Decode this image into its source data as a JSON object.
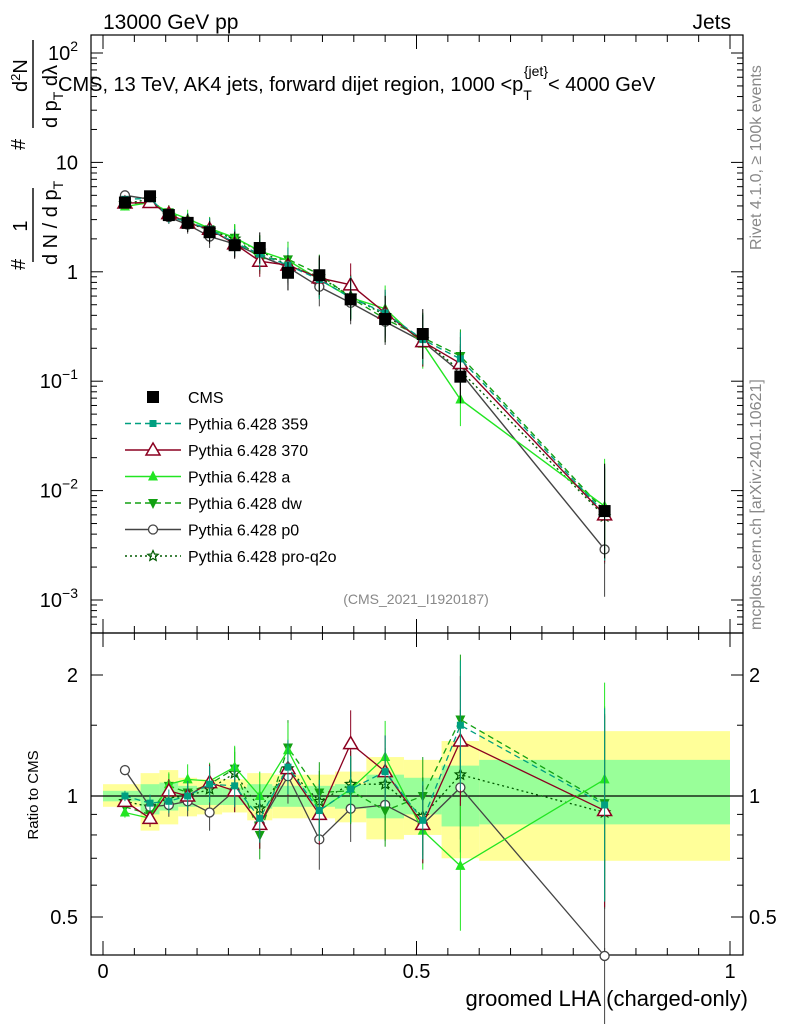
{
  "header": {
    "left": "13000 GeV pp",
    "right": "Jets"
  },
  "side_labels": {
    "rivet": "Rivet 4.1.0, ≥ 100k events",
    "mcplots": "mcplots.cern.ch [arXiv:2401.10621]"
  },
  "colors": {
    "cms": "#000000",
    "p359": "#009f80",
    "p370": "#8b0020",
    "a": "#22e522",
    "dw": "#12a012",
    "p0": "#444444",
    "q2o": "#005a00",
    "band_yellow": "#ffff99",
    "band_green": "#99ff99"
  },
  "chart_data": [
    {
      "type": "line",
      "title": "CMS, 13 TeV, AK4 jets, forward dijet region, 1000 < p_T^{jet} < 4000 GeV",
      "title_parts": {
        "main": "CMS, 13 TeV, AK4 jets, forward dijet region, 1000 <p",
        "sub": "T",
        "sup": "{jet}",
        "tail": "< 4000 GeV"
      },
      "ylabel": "# 1 / d N / d p_T # d^2N / d p_T dλ",
      "ylabel_parts": {
        "l1": "#",
        "frac1_num": "1",
        "frac1_den": "d N / d p",
        "frac1_sub": "T",
        "l2": "#",
        "frac2_num": "d",
        "frac2_num_sup": "2",
        "frac2_num_tail": "N",
        "frac2_den": "d p",
        "frac2_den_sub": "T",
        "frac2_den_tail": " dλ"
      },
      "yscale": "log",
      "ylim": [
        0.0005,
        200
      ],
      "yticks": [
        {
          "v": 0.001,
          "base": "10",
          "exp": "−3"
        },
        {
          "v": 0.01,
          "base": "10",
          "exp": "−2"
        },
        {
          "v": 0.1,
          "base": "10",
          "exp": "−1"
        },
        {
          "v": 1,
          "base": "1",
          "exp": ""
        },
        {
          "v": 10,
          "base": "10",
          "exp": ""
        },
        {
          "v": 100,
          "base": "10",
          "exp": "2"
        }
      ],
      "xlim": [
        0,
        1
      ],
      "x": [
        0.035,
        0.075,
        0.105,
        0.135,
        0.17,
        0.21,
        0.25,
        0.295,
        0.345,
        0.395,
        0.45,
        0.51,
        0.57,
        0.8
      ],
      "watermark": "(CMS_2021_I1920187)",
      "legend_position": "middle-left",
      "series": [
        {
          "name": "CMS",
          "key": "cms",
          "marker": "square",
          "line": "none",
          "values": [
            4.3,
            4.9,
            3.3,
            2.8,
            2.3,
            1.75,
            1.65,
            0.98,
            0.93,
            0.56,
            0.37,
            0.27,
            0.11,
            0.0065
          ]
        },
        {
          "name": "Pythia 6.428 359",
          "key": "p359",
          "marker": "small-square",
          "line": "dashed",
          "values": [
            4.6,
            4.7,
            3.2,
            2.85,
            2.45,
            1.85,
            1.45,
            1.15,
            0.85,
            0.58,
            0.42,
            0.24,
            0.16,
            0.0062
          ]
        },
        {
          "name": "Pythia 6.428 370",
          "key": "p370",
          "marker": "open-triangle",
          "line": "solid",
          "values": [
            4.25,
            4.3,
            3.4,
            2.8,
            2.45,
            1.8,
            1.25,
            1.15,
            0.88,
            0.76,
            0.42,
            0.23,
            0.145,
            0.006
          ]
        },
        {
          "name": "Pythia 6.428 a",
          "key": "a",
          "marker": "triangle",
          "line": "solid",
          "values": [
            3.95,
            4.3,
            3.55,
            3.05,
            2.5,
            2.05,
            1.55,
            1.27,
            0.85,
            0.58,
            0.46,
            0.22,
            0.068,
            0.0072
          ]
        },
        {
          "name": "Pythia 6.428 dw",
          "key": "dw",
          "marker": "down-triangle",
          "line": "dashed",
          "values": [
            4.1,
            4.4,
            3.5,
            2.85,
            2.45,
            2.05,
            1.33,
            1.3,
            0.95,
            0.58,
            0.37,
            0.25,
            0.17,
            0.0065
          ]
        },
        {
          "name": "Pythia 6.428 p0",
          "key": "p0",
          "marker": "open-circle",
          "line": "solid",
          "values": [
            5.0,
            4.6,
            3.15,
            2.7,
            2.1,
            1.8,
            1.4,
            1.1,
            0.73,
            0.52,
            0.35,
            0.23,
            0.12,
            0.0029
          ]
        },
        {
          "name": "Pythia 6.428 pro-q2o",
          "key": "q2o",
          "marker": "star",
          "line": "dotted",
          "values": [
            4.2,
            4.6,
            3.3,
            2.8,
            2.4,
            2.0,
            1.55,
            1.15,
            0.9,
            0.6,
            0.4,
            0.24,
            0.125,
            0.0058
          ]
        }
      ]
    },
    {
      "type": "line",
      "ylabel": "Ratio to CMS",
      "xlabel": "groomed LHA (charged-only)",
      "yscale": "log",
      "ylim": [
        0.42,
        2.45
      ],
      "yticks": [
        {
          "v": 0.5,
          "label": "0.5"
        },
        {
          "v": 1,
          "label": "1"
        },
        {
          "v": 2,
          "label": "2"
        }
      ],
      "xlim": [
        0,
        1
      ],
      "xticks": [
        {
          "v": 0,
          "label": "0"
        },
        {
          "v": 0.5,
          "label": "0.5"
        },
        {
          "v": 1,
          "label": "1"
        }
      ],
      "x": [
        0.035,
        0.075,
        0.105,
        0.135,
        0.17,
        0.21,
        0.25,
        0.295,
        0.345,
        0.395,
        0.45,
        0.51,
        0.57,
        0.8
      ],
      "bin_edges": [
        0,
        0.06,
        0.09,
        0.12,
        0.15,
        0.19,
        0.23,
        0.27,
        0.32,
        0.37,
        0.42,
        0.48,
        0.54,
        0.6,
        1.0
      ],
      "band_yellow": [
        [
          0.94,
          1.07
        ],
        [
          0.82,
          1.14
        ],
        [
          0.85,
          1.16
        ],
        [
          0.89,
          1.11
        ],
        [
          0.9,
          1.1
        ],
        [
          0.91,
          1.1
        ],
        [
          0.87,
          1.14
        ],
        [
          0.88,
          1.13
        ],
        [
          0.88,
          1.13
        ],
        [
          0.86,
          1.15
        ],
        [
          0.78,
          1.25
        ],
        [
          0.8,
          1.23
        ],
        [
          0.7,
          1.37
        ],
        [
          0.69,
          1.45
        ]
      ],
      "band_green": [
        [
          0.97,
          1.03
        ],
        [
          0.9,
          1.07
        ],
        [
          0.92,
          1.08
        ],
        [
          0.94,
          1.06
        ],
        [
          0.95,
          1.05
        ],
        [
          0.95,
          1.05
        ],
        [
          0.93,
          1.07
        ],
        [
          0.94,
          1.06
        ],
        [
          0.94,
          1.06
        ],
        [
          0.93,
          1.07
        ],
        [
          0.88,
          1.13
        ],
        [
          0.9,
          1.11
        ],
        [
          0.84,
          1.19
        ],
        [
          0.85,
          1.23
        ]
      ],
      "series": [
        {
          "key": "p359",
          "values": [
            1.0,
            0.96,
            0.97,
            1.0,
            1.07,
            1.06,
            0.88,
            1.18,
            0.92,
            1.04,
            1.15,
            0.87,
            1.5,
            0.95
          ]
        },
        {
          "key": "p370",
          "values": [
            0.97,
            0.88,
            1.03,
            1.0,
            1.08,
            1.03,
            0.85,
            1.17,
            0.9,
            1.35,
            1.15,
            0.85,
            1.37,
            0.92
          ]
        },
        {
          "key": "a",
          "values": [
            0.91,
            0.88,
            1.07,
            1.1,
            1.09,
            1.18,
            1.0,
            1.3,
            0.92,
            1.04,
            1.25,
            0.82,
            0.67,
            1.1
          ]
        },
        {
          "key": "dw",
          "values": [
            0.94,
            0.9,
            1.06,
            1.02,
            1.07,
            1.17,
            0.8,
            1.32,
            1.02,
            1.03,
            0.92,
            1.0,
            1.55,
            0.96
          ]
        },
        {
          "key": "p0",
          "values": [
            1.16,
            0.94,
            0.95,
            0.97,
            0.91,
            1.03,
            0.85,
            1.12,
            0.78,
            0.93,
            0.95,
            0.85,
            1.05,
            0.4
          ]
        },
        {
          "key": "q2o",
          "values": [
            0.97,
            0.94,
            0.99,
            1.0,
            1.04,
            1.14,
            0.93,
            1.17,
            0.97,
            1.07,
            1.07,
            0.89,
            1.13,
            0.91
          ]
        }
      ]
    }
  ]
}
